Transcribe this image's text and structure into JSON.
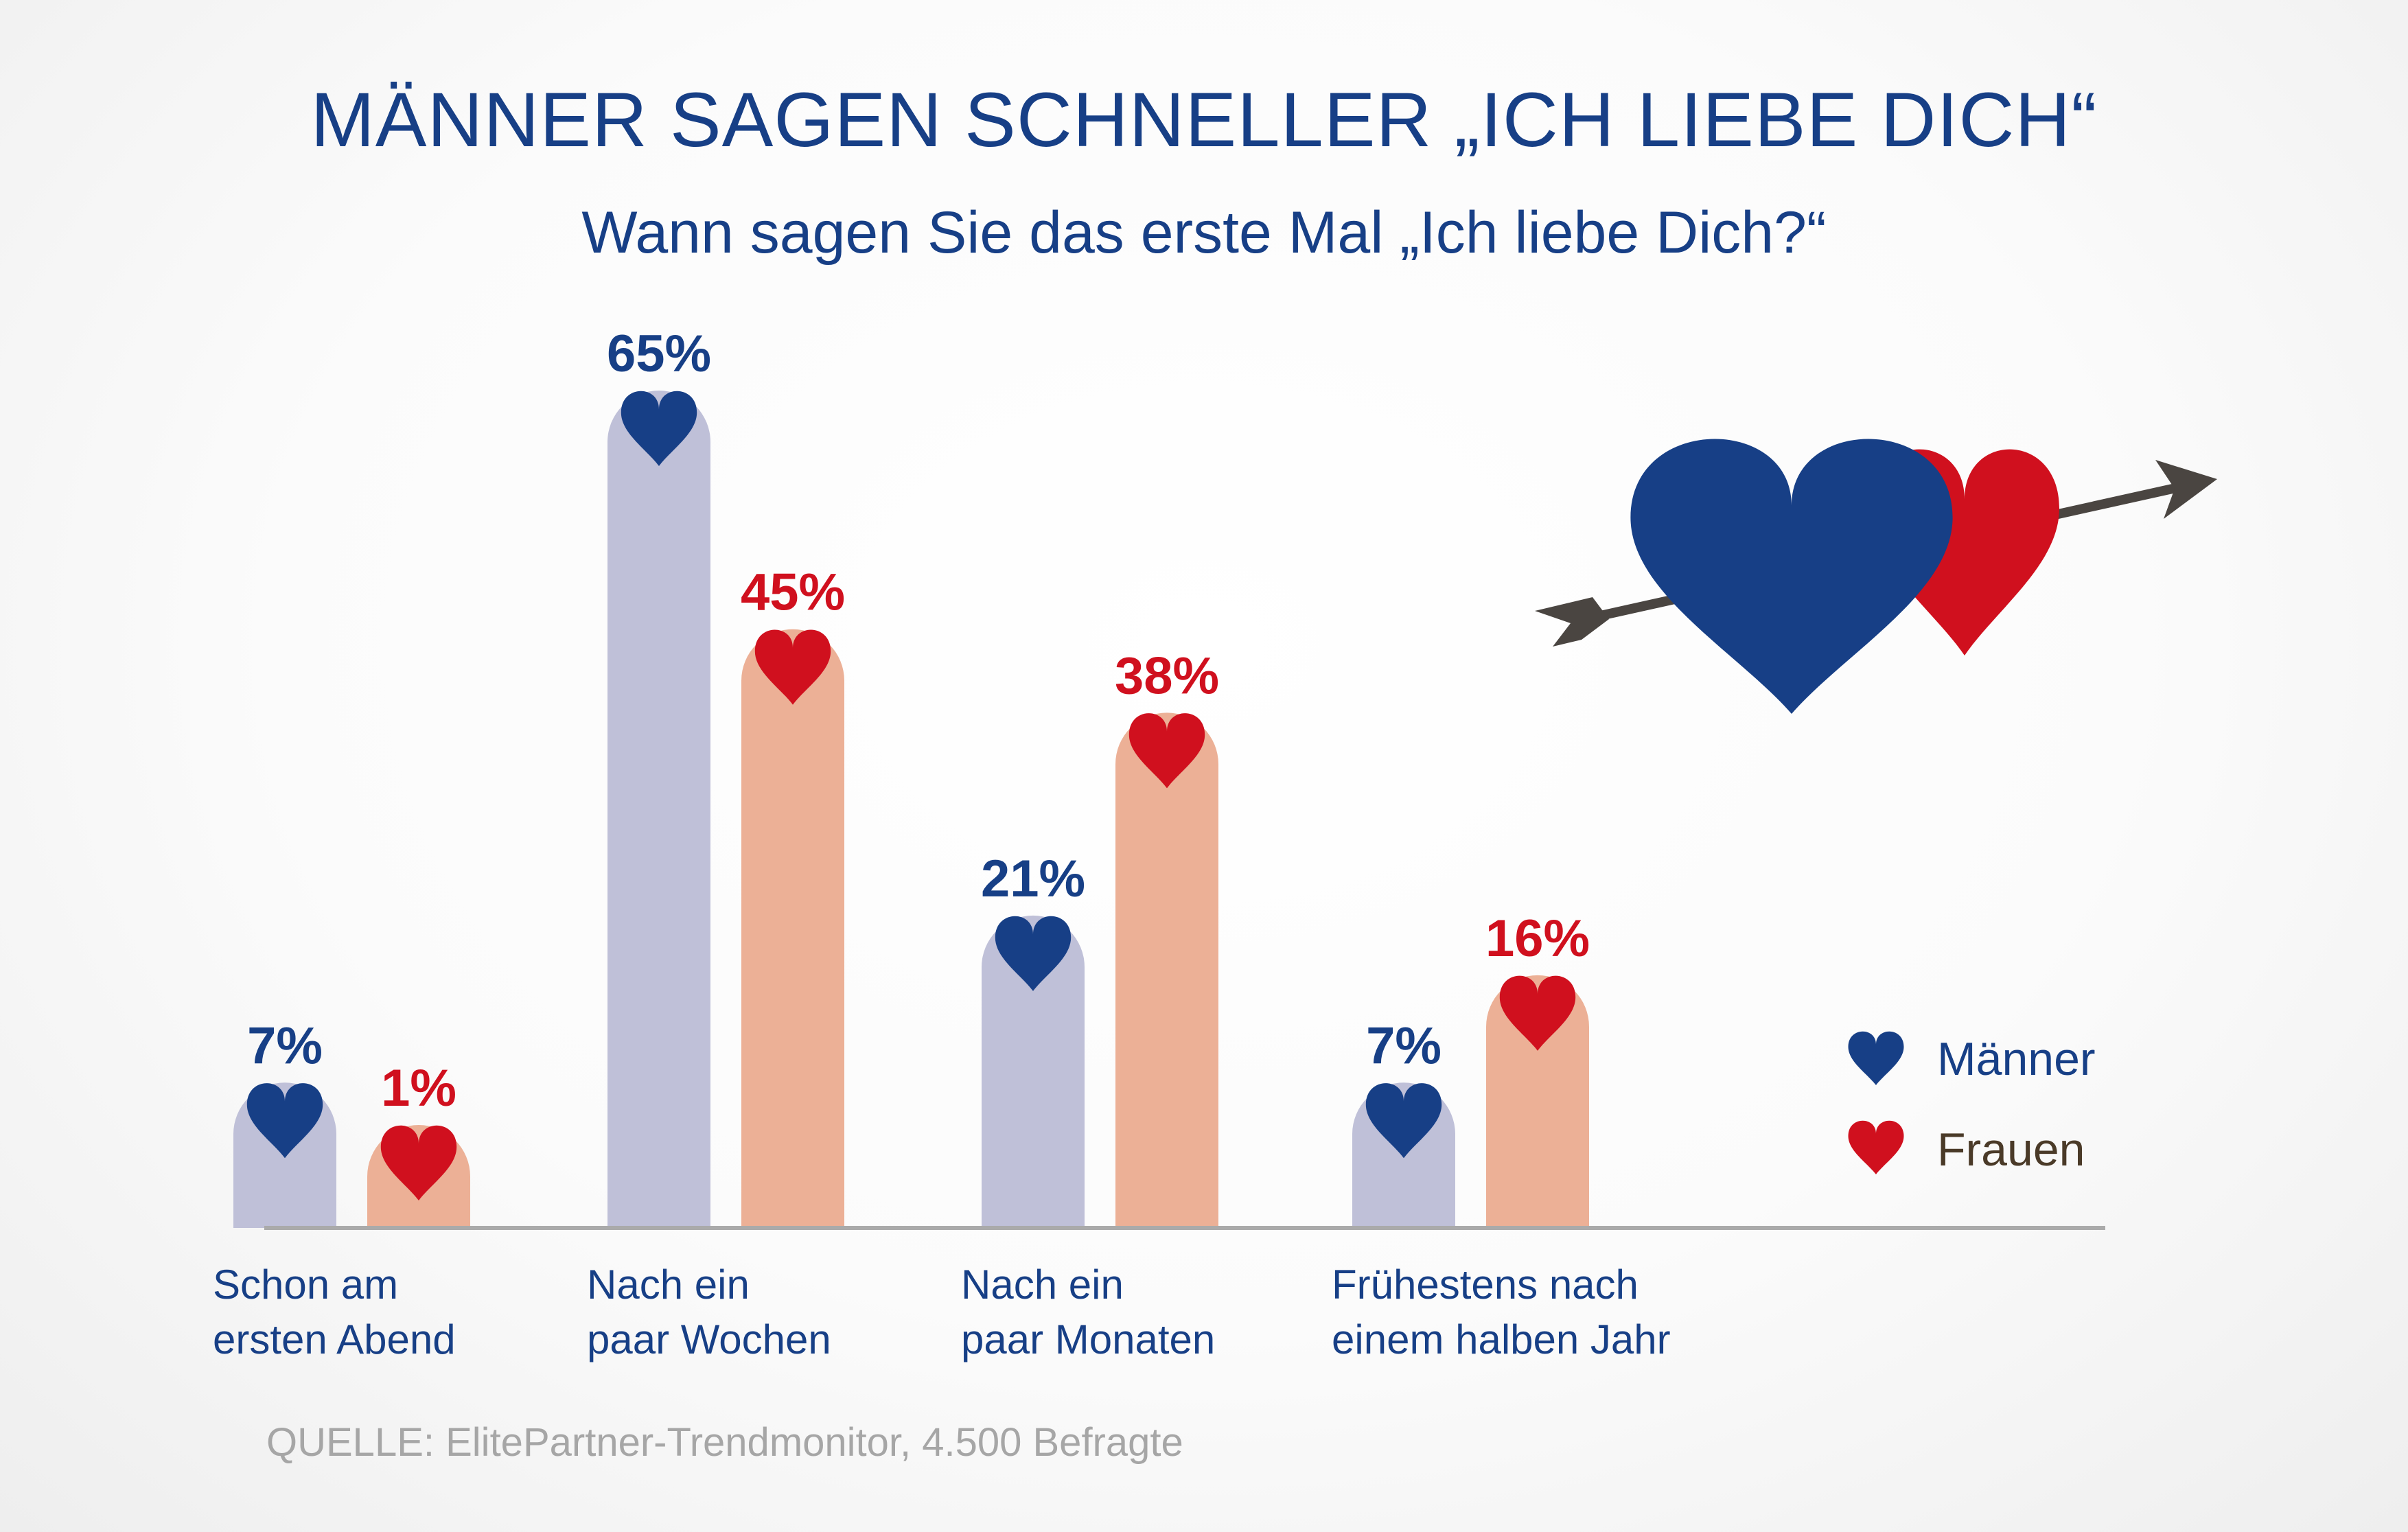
{
  "title": "MÄNNER SAGEN SCHNELLER „ICH LIEBE DICH“",
  "subtitle": "Wann sagen Sie das erste Mal „Ich liebe Dich?“",
  "source": "QUELLE: ElitePartner-Trendmonitor, 4.500 Befragte",
  "colors": {
    "maenner_bar": "#bfc0d8",
    "frauen_bar": "#ecb096",
    "maenner_accent": "#173f86",
    "frauen_accent": "#d0101e",
    "axis": "#aaaaaa",
    "arrow": "#4a4541",
    "title": "#173f86",
    "source": "#a6a6a6"
  },
  "icons": {
    "bar_marker": "heart-icon",
    "decoration": "hearts-with-arrow-icon"
  },
  "legend": {
    "position": "right",
    "items": [
      {
        "label": "Männer",
        "icon": "heart-icon",
        "color": "#173f86"
      },
      {
        "label": "Frauen",
        "icon": "heart-icon",
        "color": "#d0101e"
      }
    ]
  },
  "chart_data": {
    "type": "bar",
    "title": "MÄNNER SAGEN SCHNELLER „ICH LIEBE DICH“",
    "subtitle": "Wann sagen Sie das erste Mal „Ich liebe Dich?“",
    "categories": [
      [
        "Schon am",
        "ersten Abend"
      ],
      [
        "Nach ein",
        "paar Wochen"
      ],
      [
        "Nach ein",
        "paar Monaten"
      ],
      [
        "Frühestens nach",
        "einem halben Jahr"
      ]
    ],
    "series": [
      {
        "name": "Männer",
        "values": [
          7,
          65,
          21,
          7
        ],
        "labels": [
          "7%",
          "65%",
          "21%",
          "7%"
        ]
      },
      {
        "name": "Frauen",
        "values": [
          1,
          45,
          38,
          16
        ],
        "labels": [
          "1%",
          "45%",
          "38%",
          "16%"
        ]
      }
    ],
    "unit": "%",
    "ylim": [
      0,
      65
    ],
    "grid": false,
    "legend": "right"
  }
}
